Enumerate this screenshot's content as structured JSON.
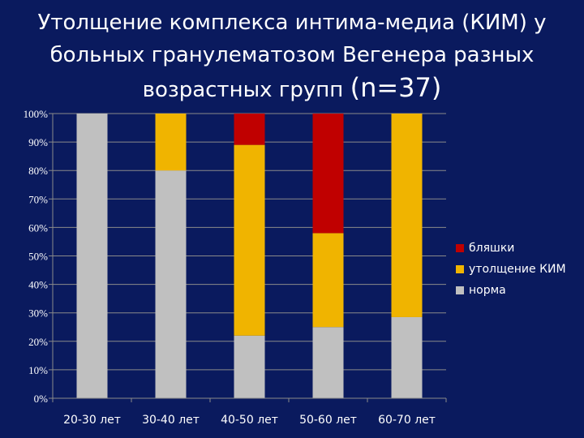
{
  "title": {
    "line1": "Утолщение комплекса интима-медиа (КИМ) у",
    "line2": "больных гранулематозом Вегенера разных",
    "line3": "возрастных групп ",
    "n": "(n=37)"
  },
  "chart_data": {
    "type": "bar",
    "stacked": true,
    "percent": true,
    "title": "Утолщение комплекса интима-медиа (КИМ) у больных гранулематозом Вегенера разных возрастных групп (n=37)",
    "categories": [
      "20-30 лет",
      "30-40 лет",
      "40-50 лет",
      "50-60 лет",
      "60-70 лет"
    ],
    "series": [
      {
        "name": "норма",
        "color": "#c0c0c0",
        "values": [
          100,
          80,
          22,
          25,
          28.5
        ]
      },
      {
        "name": "утолщение КИМ",
        "color": "#f0b400",
        "values": [
          0,
          20,
          67,
          33,
          71.5
        ]
      },
      {
        "name": "бляшки",
        "color": "#c00000",
        "values": [
          0,
          0,
          11,
          42,
          0
        ]
      }
    ],
    "ylim": [
      0,
      100
    ],
    "yticks": [
      "0%",
      "10%",
      "20%",
      "30%",
      "40%",
      "50%",
      "60%",
      "70%",
      "80%",
      "90%",
      "100%"
    ],
    "grid": true,
    "legend_position": "right",
    "legend_order": [
      "бляшки",
      "утолщение КИМ",
      "норма"
    ]
  }
}
